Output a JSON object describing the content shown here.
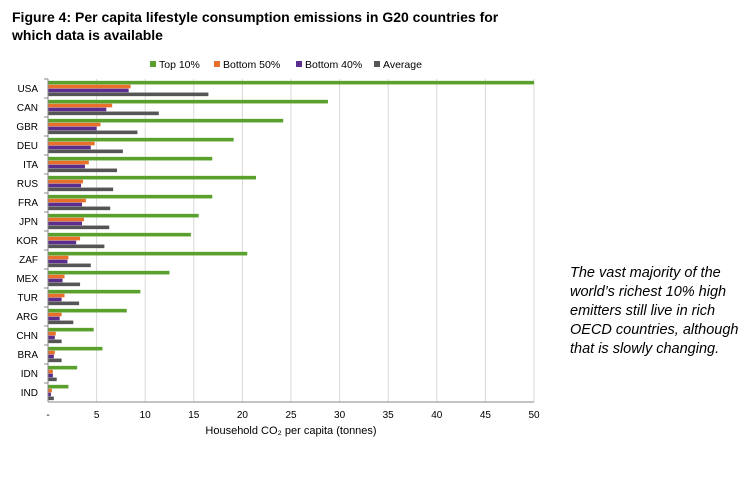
{
  "figure_title": "Figure 4: Per capita lifestyle consumption emissions in G20 countries for which data is available",
  "caption": "The vast majority of the world’s richest 10% high emitters still live in rich OECD countries, although that is slowly changing.",
  "colors": {
    "Top 10%": "#5aa02c",
    "Bottom 50%": "#e8702a",
    "Bottom 40%": "#5b2d8c",
    "Average": "#555555"
  },
  "chart_data": {
    "type": "bar",
    "orientation": "horizontal",
    "categories": [
      "USA",
      "CAN",
      "GBR",
      "DEU",
      "ITA",
      "RUS",
      "FRA",
      "JPN",
      "KOR",
      "ZAF",
      "MEX",
      "TUR",
      "ARG",
      "CHN",
      "BRA",
      "IDN",
      "IND"
    ],
    "series": [
      {
        "name": "Top 10%",
        "values": [
          50.0,
          28.8,
          24.2,
          19.1,
          16.9,
          21.4,
          16.9,
          15.5,
          14.7,
          20.5,
          12.5,
          9.5,
          8.1,
          4.7,
          5.6,
          3.0,
          2.1
        ]
      },
      {
        "name": "Bottom 50%",
        "values": [
          8.5,
          6.6,
          5.4,
          4.8,
          4.2,
          3.6,
          3.9,
          3.7,
          3.3,
          2.1,
          1.7,
          1.7,
          1.4,
          0.8,
          0.7,
          0.5,
          0.4
        ]
      },
      {
        "name": "Bottom 40%",
        "values": [
          8.3,
          6.0,
          5.0,
          4.4,
          3.8,
          3.4,
          3.5,
          3.5,
          2.9,
          2.0,
          1.5,
          1.4,
          1.2,
          0.7,
          0.6,
          0.5,
          0.3
        ]
      },
      {
        "name": "Average",
        "values": [
          16.5,
          11.4,
          9.2,
          7.7,
          7.1,
          6.7,
          6.4,
          6.3,
          5.8,
          4.4,
          3.3,
          3.2,
          2.6,
          1.4,
          1.4,
          0.9,
          0.6
        ]
      }
    ],
    "xlabel": "Household CO₂ per capita (tonnes)",
    "xlim": [
      0,
      50
    ],
    "xticks": [
      "-",
      "5",
      "10",
      "15",
      "20",
      "25",
      "30",
      "35",
      "40",
      "45",
      "50"
    ],
    "grid": true,
    "legend_position": "top"
  }
}
